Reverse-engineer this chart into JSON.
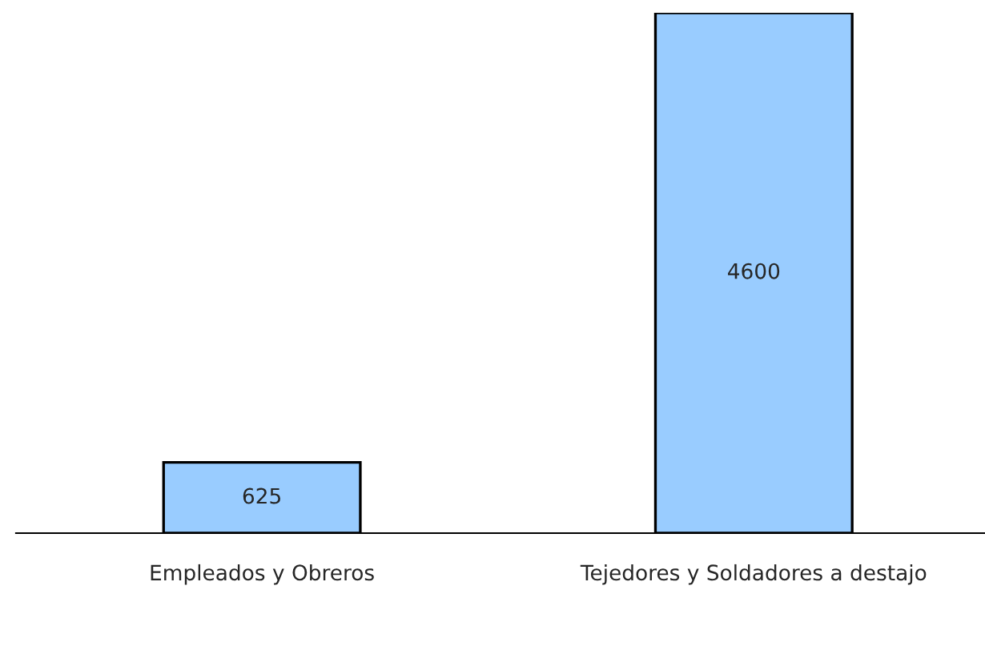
{
  "chart_data": {
    "type": "bar",
    "categories": [
      "Empleados y Obreros",
      "Tejedores y Soldadores a destajo"
    ],
    "values": [
      625,
      4600
    ],
    "color": "#99ccff",
    "data_labels": true,
    "grid": false,
    "legend": false
  }
}
